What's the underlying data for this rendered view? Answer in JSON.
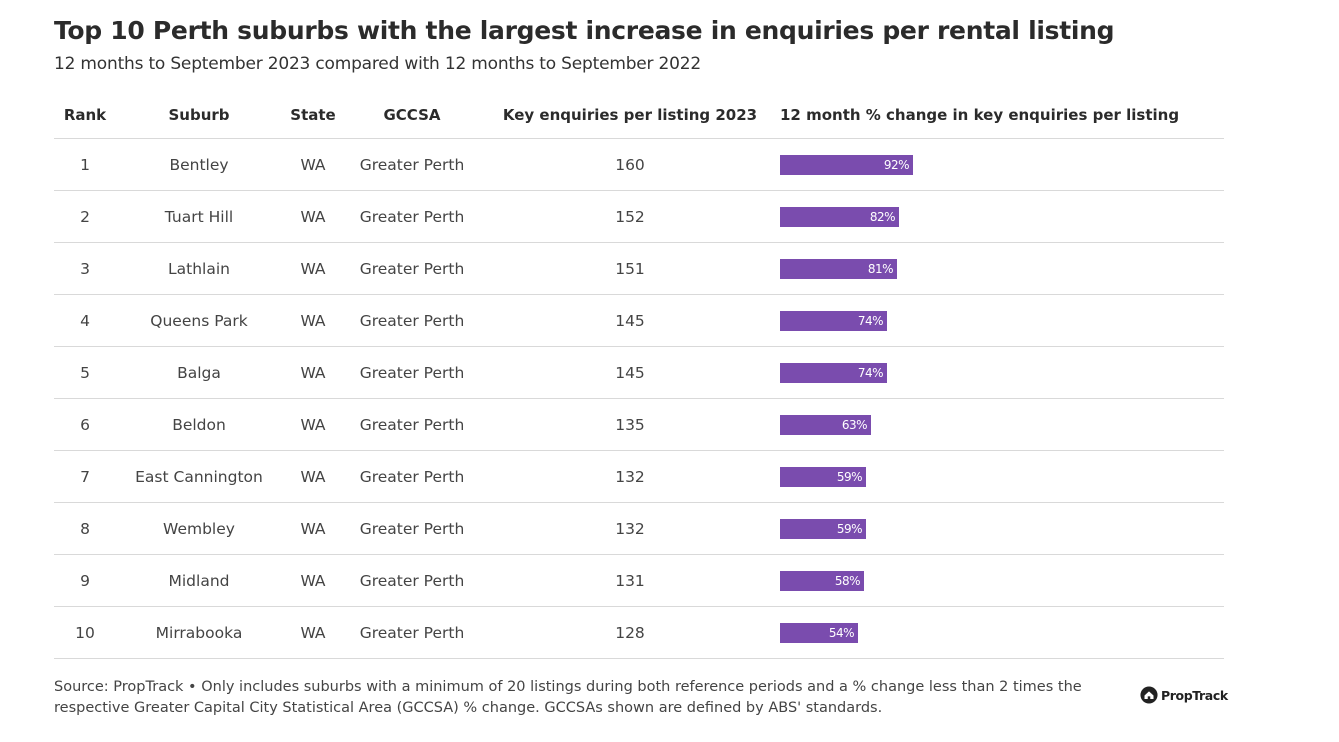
{
  "title": "Top 10 Perth suburbs with the largest increase in enquiries per rental listing",
  "subtitle": "12 months to September 2023 compared with 12 months to September 2022",
  "headers": {
    "rank": "Rank",
    "suburb": "Suburb",
    "state": "State",
    "gccsa": "GCCSA",
    "enquiries": "Key enquiries per listing 2023",
    "change": "12 month % change in key enquiries per listing"
  },
  "rows": [
    {
      "rank": "1",
      "suburb": "Bentley",
      "state": "WA",
      "gccsa": "Greater Perth",
      "enquiries": "160",
      "change_label": "92%"
    },
    {
      "rank": "2",
      "suburb": "Tuart Hill",
      "state": "WA",
      "gccsa": "Greater Perth",
      "enquiries": "152",
      "change_label": "82%"
    },
    {
      "rank": "3",
      "suburb": "Lathlain",
      "state": "WA",
      "gccsa": "Greater Perth",
      "enquiries": "151",
      "change_label": "81%"
    },
    {
      "rank": "4",
      "suburb": "Queens Park",
      "state": "WA",
      "gccsa": "Greater Perth",
      "enquiries": "145",
      "change_label": "74%"
    },
    {
      "rank": "5",
      "suburb": "Balga",
      "state": "WA",
      "gccsa": "Greater Perth",
      "enquiries": "145",
      "change_label": "74%"
    },
    {
      "rank": "6",
      "suburb": "Beldon",
      "state": "WA",
      "gccsa": "Greater Perth",
      "enquiries": "135",
      "change_label": "63%"
    },
    {
      "rank": "7",
      "suburb": "East Cannington",
      "state": "WA",
      "gccsa": "Greater Perth",
      "enquiries": "132",
      "change_label": "59%"
    },
    {
      "rank": "8",
      "suburb": "Wembley",
      "state": "WA",
      "gccsa": "Greater Perth",
      "enquiries": "132",
      "change_label": "59%"
    },
    {
      "rank": "9",
      "suburb": "Midland",
      "state": "WA",
      "gccsa": "Greater Perth",
      "enquiries": "131",
      "change_label": "58%"
    },
    {
      "rank": "10",
      "suburb": "Mirrabooka",
      "state": "WA",
      "gccsa": "Greater Perth",
      "enquiries": "128",
      "change_label": "54%"
    }
  ],
  "chart_data": {
    "type": "bar",
    "categories": [
      "Bentley",
      "Tuart Hill",
      "Lathlain",
      "Queens Park",
      "Balga",
      "Beldon",
      "East Cannington",
      "Wembley",
      "Midland",
      "Mirrabooka"
    ],
    "values": [
      92,
      82,
      81,
      74,
      74,
      63,
      59,
      59,
      58,
      54
    ],
    "ylim": [
      0,
      100
    ],
    "bar_color": "#7a4cae"
  },
  "source": "Source: PropTrack • Only includes suburbs with a minimum of 20 listings during both reference periods and a % change less than 2 times the respective Greater Capital City Statistical Area (GCCSA) % change. GCCSAs shown are defined by ABS' standards.",
  "logo": {
    "text": "PropTrack",
    "icon": "house-icon"
  }
}
